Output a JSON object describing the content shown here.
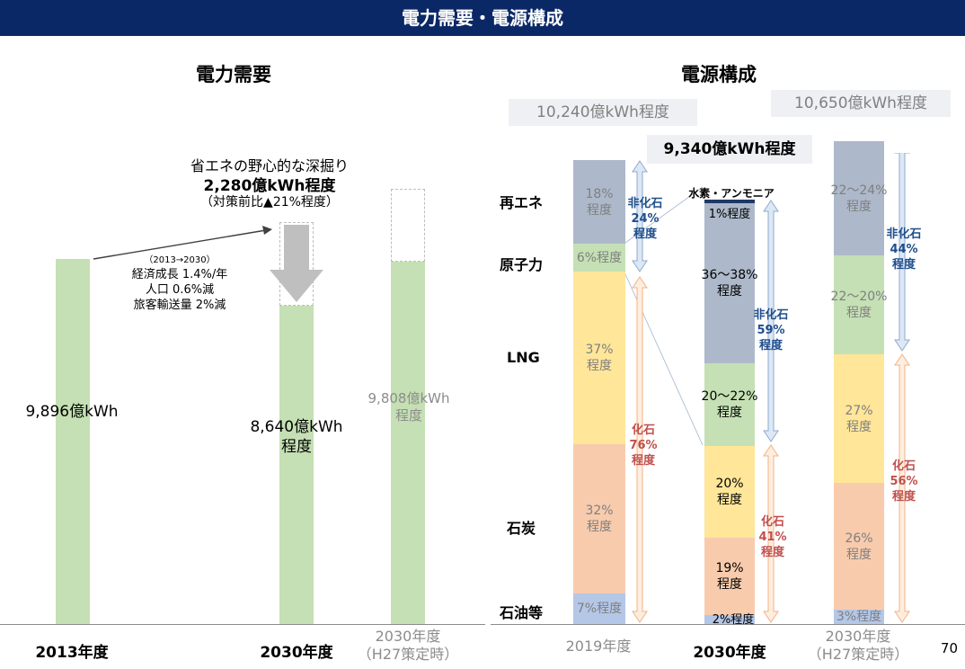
{
  "page_title": "電力需要・電源構成",
  "page_number": "70",
  "demand": {
    "title": "電力需要",
    "callout_line1": "省エネの野心的な深掘り",
    "callout_line2": "2,280億kWh程度",
    "callout_line3": "（対策前比▲21%程度）",
    "assumption_header": "（2013→2030）",
    "assumption_1": "経済成長 1.4%/年",
    "assumption_2": "人口  0.6%減",
    "assumption_3": "旅客輸送量  2%減",
    "chart_data": {
      "type": "bar",
      "categories": [
        "2013年度",
        "2030年度",
        "2030年度（H27策定時）"
      ],
      "values": [
        9896,
        8640,
        9808
      ],
      "unit": "億kWh",
      "value_labels": [
        "9,896億kWh",
        "8,640億kWh\n程度",
        "9,808億kWh\n程度"
      ],
      "reduction_to_2030": 2280,
      "pre_measures_2030": 10920
    },
    "bar_labels": {
      "b2013": "9,896億kWh",
      "b2030_1": "8,640億kWh",
      "b2030_2": "程度",
      "bh27_1": "9,808億kWh",
      "bh27_2": "程度"
    },
    "x_labels": {
      "y2013": "2013年度",
      "y2030": "2030年度",
      "h27_1": "2030年度",
      "h27_2": "（H27策定時）"
    }
  },
  "mix": {
    "title": "電源構成",
    "total_2019": "10,240億kWh程度",
    "total_2030": "9,340億kWh程度",
    "total_h27": "10,650億kWh程度",
    "hydrogen_label": "水素・アンモニア",
    "source_labels": {
      "renewable": "再エネ",
      "nuclear": "原子力",
      "lng": "LNG",
      "coal": "石炭",
      "oil": "石油等"
    },
    "x_labels": {
      "y2019": "2019年度",
      "y2030": "2030年度",
      "h27_1": "2030年度",
      "h27_2": "（H27策定時）"
    },
    "colors": {
      "renewable": "#adb9ca",
      "nuclear": "#c5e0b4",
      "lng": "#ffe699",
      "coal": "#f8cbad",
      "oil": "#b4c7e7",
      "hydrogen": "#1f3864"
    },
    "chart_data": {
      "type": "stacked-bar",
      "categories": [
        "2019年度",
        "2030年度",
        "2030年度（H27策定時）"
      ],
      "series": [
        {
          "name": "再エネ",
          "values": [
            18,
            37,
            23
          ],
          "labels": [
            "18%\n程度",
            "36～38%\n程度",
            "22～24%\n程度"
          ]
        },
        {
          "name": "原子力",
          "values": [
            6,
            21,
            21
          ],
          "labels": [
            "6%程度",
            "20～22%\n程度",
            "22～20%\n程度"
          ]
        },
        {
          "name": "LNG",
          "values": [
            37,
            20,
            27
          ],
          "labels": [
            "37%\n程度",
            "20%\n程度",
            "27%\n程度"
          ]
        },
        {
          "name": "石炭",
          "values": [
            32,
            19,
            26
          ],
          "labels": [
            "32%\n程度",
            "19%\n程度",
            "26%\n程度"
          ]
        },
        {
          "name": "石油等",
          "values": [
            7,
            2,
            3
          ],
          "labels": [
            "7%程度",
            "2%程度",
            "3%程度"
          ]
        },
        {
          "name": "水素・アンモニア",
          "values": [
            0,
            1,
            0
          ],
          "labels": [
            "",
            "1%程度",
            ""
          ]
        }
      ],
      "nonfossil": [
        "非化石\n24%\n程度",
        "非化石\n59%\n程度",
        "非化石\n44%\n程度"
      ],
      "fossil": [
        "化石\n76%\n程度",
        "化石\n41%\n程度",
        "化石\n56%\n程度"
      ]
    },
    "seg_labels": {
      "c1": {
        "re_1": "18%",
        "re_2": "程度",
        "nu": "6%程度",
        "lng_1": "37%",
        "lng_2": "程度",
        "coal_1": "32%",
        "coal_2": "程度",
        "oil": "7%程度"
      },
      "c2": {
        "h2": "1%程度",
        "re_1": "36～38%",
        "re_2": "程度",
        "nu_1": "20～22%",
        "nu_2": "程度",
        "lng_1": "20%",
        "lng_2": "程度",
        "coal_1": "19%",
        "coal_2": "程度",
        "oil": "2%程度"
      },
      "c3": {
        "re_1": "22～24%",
        "re_2": "程度",
        "nu_1": "22～20%",
        "nu_2": "程度",
        "lng_1": "27%",
        "lng_2": "程度",
        "coal_1": "26%",
        "coal_2": "程度",
        "oil": "3%程度"
      }
    },
    "arrows": {
      "c1_nf": [
        "非化石",
        "24%",
        "程度"
      ],
      "c1_f": [
        "化石",
        "76%",
        "程度"
      ],
      "c2_nf": [
        "非化石",
        "59%",
        "程度"
      ],
      "c2_f": [
        "化石",
        "41%",
        "程度"
      ],
      "c3_nf": [
        "非化石",
        "44%",
        "程度"
      ],
      "c3_f": [
        "化石",
        "56%",
        "程度"
      ]
    }
  }
}
